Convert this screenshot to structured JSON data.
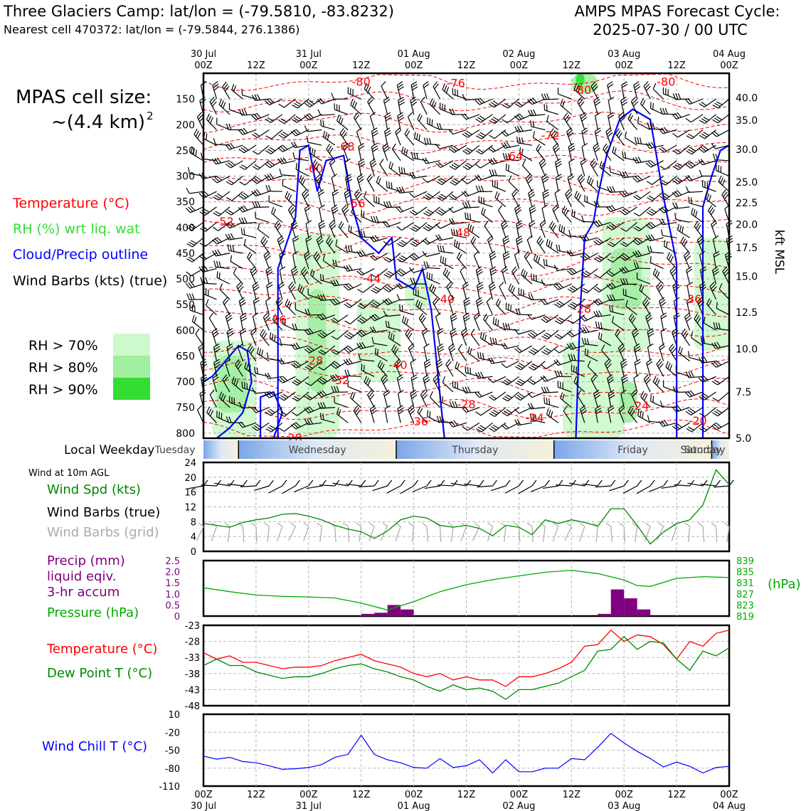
{
  "header": {
    "title": "Three Glaciers Camp: lat/lon = (-79.5810, -83.8232)",
    "subtitle": "Nearest cell 470372: lat/lon = (-79.5844, 276.1386)",
    "forecast_title": "AMPS MPAS Forecast Cycle:",
    "forecast_cycle": "2025-07-30 / 00 UTC"
  },
  "legend": {
    "cell_size_label": "MPAS cell size:",
    "cell_size_value": "~(4.4 km)",
    "cell_size_exp": "2",
    "temperature": "Temperature (°C)",
    "rh": "RH (%) wrt liq. wat",
    "cloud": "Cloud/Precip outline",
    "wind": "Wind Barbs (kts) (true)",
    "rh70": "RH > 70%",
    "rh80": "RH > 80%",
    "rh90": "RH > 90%"
  },
  "colors": {
    "temperature": "#ff0000",
    "rh": "#33dd33",
    "cloud": "#0000ff",
    "precip": "#800080",
    "pressure": "#00aa00",
    "dewpoint": "#008800",
    "windchill": "#0000ff",
    "wind_spd": "#008800",
    "grid_barb": "#aaaaaa",
    "rh70": "#ccfacc",
    "rh80": "#a0eea0",
    "rh90": "#33dd33"
  },
  "time_axis": {
    "top_labels": [
      [
        "30 Jul",
        "00Z"
      ],
      [
        "",
        "12Z"
      ],
      [
        "31 Jul",
        "00Z"
      ],
      [
        "",
        "12Z"
      ],
      [
        "01 Aug",
        "00Z"
      ],
      [
        "",
        "12Z"
      ],
      [
        "02 Aug",
        "00Z"
      ],
      [
        "",
        "12Z"
      ],
      [
        "03 Aug",
        "00Z"
      ],
      [
        "",
        "12Z"
      ],
      [
        "04 Aug",
        "00Z"
      ]
    ],
    "bottom_labels": [
      [
        "00Z",
        "30 Jul"
      ],
      [
        "12Z",
        ""
      ],
      [
        "00Z",
        "31 Jul"
      ],
      [
        "12Z",
        ""
      ],
      [
        "00Z",
        "01 Aug"
      ],
      [
        "12Z",
        ""
      ],
      [
        "00Z",
        "02 Aug"
      ],
      [
        "12Z",
        ""
      ],
      [
        "00Z",
        "03 Aug"
      ],
      [
        "12Z",
        ""
      ],
      [
        "00Z",
        "04 Aug"
      ]
    ]
  },
  "weekday": {
    "label": "Local Weekday",
    "days": [
      "Tuesday",
      "Wednesday",
      "Thursday",
      "Friday",
      "Saturday",
      "Sunday"
    ]
  },
  "chart_data": [
    {
      "type": "heatmap",
      "name": "cross-section",
      "ylabel_left": "",
      "yticks_left": [
        150,
        200,
        250,
        300,
        350,
        400,
        450,
        500,
        550,
        600,
        650,
        700,
        750,
        800
      ],
      "ylabel_right": "kft MSL",
      "yticks_right": [
        "40.0",
        "35.0",
        "30.0",
        "25.0",
        "22.5",
        "20.0",
        "17.5",
        "15.0",
        "12.5",
        "10.0",
        "7.5",
        "5.0"
      ],
      "yticks_right_hpa": [
        148,
        191,
        248,
        312,
        352,
        394,
        439,
        495,
        565,
        636,
        720,
        810
      ],
      "ylim": [
        100,
        810
      ],
      "temperature_contour_labels": [
        {
          "t": 30,
          "p": 117,
          "v": "-80"
        },
        {
          "t": 48,
          "p": 120,
          "v": "-76"
        },
        {
          "t": 88,
          "p": 117,
          "v": "-80"
        },
        {
          "t": 72,
          "p": 133,
          "v": "-80"
        },
        {
          "t": 66,
          "p": 222,
          "v": "-72"
        },
        {
          "t": 27,
          "p": 243,
          "v": "-68"
        },
        {
          "t": 59,
          "p": 262,
          "v": "-64"
        },
        {
          "t": 21,
          "p": 286,
          "v": "-60"
        },
        {
          "t": 4,
          "p": 389,
          "v": "-52"
        },
        {
          "t": 29,
          "p": 354,
          "v": "-56"
        },
        {
          "t": 49,
          "p": 411,
          "v": "-48"
        },
        {
          "t": 32,
          "p": 500,
          "v": "-44"
        },
        {
          "t": 46,
          "p": 540,
          "v": "-40"
        },
        {
          "t": 72,
          "p": 559,
          "v": "-28"
        },
        {
          "t": 93,
          "p": 540,
          "v": "-36"
        },
        {
          "t": 14,
          "p": 580,
          "v": "-36"
        },
        {
          "t": 21,
          "p": 660,
          "v": "-28"
        },
        {
          "t": 26,
          "p": 698,
          "v": "-32"
        },
        {
          "t": 37,
          "p": 668,
          "v": "-40"
        },
        {
          "t": 50,
          "p": 745,
          "v": "-28"
        },
        {
          "t": 63,
          "p": 771,
          "v": "-24"
        },
        {
          "t": 83,
          "p": 748,
          "v": "-24"
        },
        {
          "t": 41,
          "p": 778,
          "v": "-36"
        },
        {
          "t": 17,
          "p": 810,
          "v": "-28"
        },
        {
          "t": 94,
          "p": 777,
          "v": "-20"
        }
      ]
    },
    {
      "type": "line",
      "name": "wind-speed",
      "ylim": [
        0,
        24
      ],
      "yticks": [
        0,
        4,
        8,
        12,
        16,
        20,
        24
      ],
      "x_hours": [
        0,
        3,
        6,
        9,
        12,
        15,
        18,
        21,
        24,
        27,
        30,
        33,
        36,
        39,
        42,
        45,
        48,
        51,
        54,
        57,
        60,
        63,
        66,
        69,
        72,
        75,
        78,
        81,
        84,
        87,
        90,
        93,
        96,
        99,
        102,
        105,
        108,
        111,
        114,
        117,
        120
      ],
      "series": [
        {
          "name": "Wind Spd (kts)",
          "values": [
            7.5,
            7,
            6.5,
            7.8,
            8.5,
            9,
            10,
            10.2,
            9.5,
            8.5,
            7,
            6,
            5.3,
            3.5,
            5.5,
            8.5,
            9.5,
            9,
            7,
            6.5,
            7,
            6.2,
            4.2,
            7,
            6.5,
            4.5,
            8.5,
            7.5,
            8.5,
            7.8,
            6.8,
            11.5,
            11.5,
            7,
            2,
            5.2,
            7.5,
            8.5,
            12.5,
            22,
            18
          ]
        }
      ]
    },
    {
      "type": "bar",
      "name": "precip-pressure",
      "precip_ylim": [
        0,
        2.5
      ],
      "precip_yticks": [
        "0",
        "0.5",
        "1.0",
        "1.5",
        "2.0",
        "2.5"
      ],
      "pressure_ylim": [
        819,
        839
      ],
      "pressure_yticks": [
        "839",
        "835",
        "831",
        "827",
        "823",
        "819"
      ],
      "pressure_unit": "(hPa)",
      "precip_bars": [
        {
          "x": 36,
          "v": 0.1
        },
        {
          "x": 39,
          "v": 0.15
        },
        {
          "x": 42,
          "v": 0.5
        },
        {
          "x": 45,
          "v": 0.3
        },
        {
          "x": 90,
          "v": 0.1
        },
        {
          "x": 93,
          "v": 1.2
        },
        {
          "x": 96,
          "v": 0.8
        },
        {
          "x": 99,
          "v": 0.3
        }
      ],
      "x_hours": [
        0,
        6,
        12,
        18,
        24,
        30,
        36,
        42,
        48,
        54,
        60,
        66,
        72,
        78,
        84,
        90,
        96,
        99,
        102,
        108,
        114,
        120
      ],
      "pressure": [
        829.2,
        827.8,
        826.6,
        826.1,
        825.9,
        825.5,
        823.7,
        821.2,
        824.2,
        827.8,
        830.3,
        832.1,
        833.5,
        834.8,
        835.5,
        834.3,
        832,
        830,
        829.7,
        832.6,
        833.2,
        832.9
      ]
    },
    {
      "type": "line",
      "name": "temperature-dewpoint",
      "ylim": [
        -48,
        -23
      ],
      "yticks": [
        -23,
        -28,
        -33,
        -38,
        -43,
        -48
      ],
      "x_hours": [
        0,
        3,
        6,
        9,
        12,
        15,
        18,
        21,
        24,
        27,
        30,
        33,
        36,
        39,
        42,
        45,
        48,
        51,
        54,
        57,
        60,
        63,
        66,
        69,
        72,
        75,
        78,
        81,
        84,
        87,
        90,
        93,
        96,
        99,
        102,
        105,
        108,
        111,
        114,
        117,
        120
      ],
      "series": [
        {
          "name": "Temperature (°C)",
          "values": [
            -31.5,
            -33.5,
            -32.5,
            -34.5,
            -34.5,
            -35.5,
            -36.5,
            -36,
            -36,
            -35.5,
            -34,
            -33,
            -32,
            -34,
            -35,
            -36,
            -38,
            -39,
            -38,
            -40,
            -39,
            -40,
            -40,
            -42,
            -39,
            -39,
            -38,
            -36.5,
            -34.5,
            -29.5,
            -29,
            -24.5,
            -28,
            -26,
            -26.5,
            -29,
            -33.5,
            -28,
            -29.5,
            -25.5,
            -24.5
          ],
          "color_key": "temperature"
        },
        {
          "name": "Dew Point T (°C)",
          "values": [
            -35.5,
            -33.5,
            -35.5,
            -35.5,
            -37.5,
            -38.5,
            -39.5,
            -39,
            -39,
            -38,
            -36.5,
            -35.5,
            -35,
            -36.5,
            -37.5,
            -39,
            -40,
            -42,
            -43.5,
            -41.5,
            -43,
            -42.5,
            -43.5,
            -46,
            -43,
            -43,
            -42,
            -41,
            -39,
            -37,
            -31,
            -30.5,
            -26.5,
            -30.5,
            -28,
            -28.5,
            -33.5,
            -37,
            -31,
            -32.5,
            -30
          ],
          "color_key": "dewpoint"
        }
      ]
    },
    {
      "type": "line",
      "name": "wind-chill",
      "ylim": [
        -110,
        10
      ],
      "yticks": [
        "10",
        "-20",
        "-50",
        "-80",
        "-110"
      ],
      "x_hours": [
        0,
        3,
        6,
        9,
        12,
        15,
        18,
        21,
        24,
        27,
        30,
        33,
        36,
        39,
        42,
        45,
        48,
        51,
        54,
        57,
        60,
        63,
        66,
        69,
        72,
        75,
        78,
        81,
        84,
        87,
        90,
        93,
        96,
        99,
        102,
        105,
        108,
        111,
        114,
        117,
        120
      ],
      "series": [
        {
          "name": "Wind Chill T (°C)",
          "values": [
            -60,
            -65,
            -62,
            -69,
            -71,
            -76,
            -82,
            -81,
            -79,
            -74,
            -62,
            -57,
            -25,
            -57,
            -66,
            -71,
            -79,
            -80,
            -64,
            -79,
            -76,
            -66,
            -88,
            -66,
            -86,
            -86,
            -80,
            -80,
            -64,
            -66,
            -45,
            -22,
            -38,
            -52,
            -64,
            -78,
            -70,
            -77,
            -88,
            -79,
            -77
          ],
          "color_key": "windchill"
        }
      ]
    }
  ],
  "side_labels": {
    "wind_10m": "Wind at 10m AGL",
    "wind_spd": "Wind Spd (kts)",
    "wind_barbs_true": "Wind Barbs (true)",
    "wind_barbs_grid": "Wind Barbs (grid)",
    "precip_l1": "Precip (mm)",
    "precip_l2": "liquid eqiv.",
    "precip_l3": "3-hr accum",
    "pressure": "Pressure (hPa)",
    "temperature": "Temperature (°C)",
    "dewpoint": "Dew Point T (°C)",
    "windchill": "Wind Chill T (°C)"
  }
}
